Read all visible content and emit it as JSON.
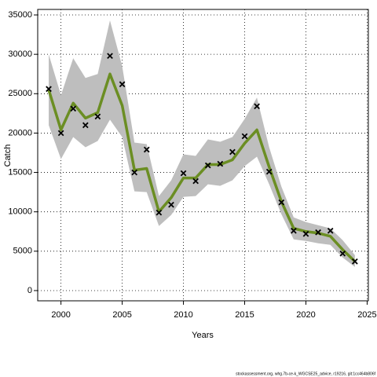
{
  "chart_data": {
    "type": "line",
    "xlabel": "Years",
    "ylabel": "Catch",
    "footnote": "stockassessment.org, whg.7b-ce-k_WGCSE25_advice, r19216, git:1cc464b806f",
    "x": [
      1999,
      2000,
      2001,
      2002,
      2003,
      2004,
      2005,
      2006,
      2007,
      2008,
      2009,
      2010,
      2011,
      2012,
      2013,
      2014,
      2015,
      2016,
      2017,
      2018,
      2019,
      2020,
      2021,
      2022,
      2023,
      2024
    ],
    "series": [
      {
        "color": "#6b8e23",
        "values": [
          25500,
          20400,
          23800,
          21900,
          22600,
          27500,
          23500,
          15300,
          15500,
          10000,
          11800,
          14300,
          14300,
          16000,
          16000,
          16600,
          18700,
          20400,
          15700,
          11300,
          7900,
          7500,
          7300,
          6900,
          5200,
          3700
        ]
      }
    ],
    "band": {
      "color": "#bebebe",
      "upper": [
        30000,
        24800,
        29500,
        27000,
        27500,
        34300,
        28500,
        18800,
        18600,
        12000,
        14000,
        17300,
        17100,
        19200,
        18900,
        19500,
        21800,
        24500,
        18200,
        13200,
        9300,
        8700,
        8300,
        7900,
        6400,
        4500
      ],
      "lower": [
        21000,
        16700,
        19500,
        18200,
        19000,
        21700,
        19500,
        12600,
        12500,
        8200,
        9600,
        11900,
        12000,
        13500,
        13300,
        14000,
        15800,
        17000,
        13500,
        9700,
        6500,
        6300,
        6000,
        5800,
        4200,
        3000
      ]
    },
    "observed": {
      "color": "#000000",
      "values": [
        25600,
        20000,
        23100,
        21000,
        22100,
        29800,
        26200,
        15000,
        17900,
        9900,
        10900,
        14900,
        13900,
        15900,
        16100,
        17600,
        19600,
        23400,
        15100,
        11200,
        7600,
        7200,
        7400,
        7600,
        4700,
        3700
      ]
    },
    "xlim": [
      1998.1,
      2025.1
    ],
    "ylim": [
      -1300,
      35700
    ],
    "xticks": [
      2000,
      2005,
      2010,
      2015,
      2020,
      2025
    ],
    "yticks": [
      0,
      5000,
      10000,
      15000,
      20000,
      25000,
      30000,
      35000
    ],
    "grid": true
  }
}
